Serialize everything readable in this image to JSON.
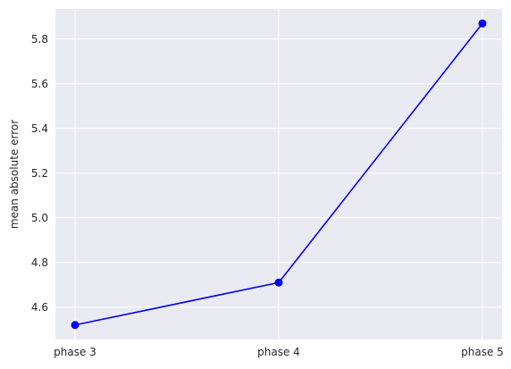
{
  "chart_data": {
    "type": "line",
    "title": "",
    "xlabel": "",
    "ylabel": "mean absolute error",
    "categories": [
      "phase 3",
      "phase 4",
      "phase 5"
    ],
    "series": [
      {
        "values": [
          4.52,
          4.71,
          5.87
        ],
        "color": "#0000ff",
        "marker": "circle"
      }
    ],
    "ylim": [
      4.455,
      5.935
    ],
    "yticks": [
      4.6,
      4.8,
      5.0,
      5.2,
      5.4,
      5.6,
      5.8
    ],
    "ytick_labels": [
      "4.6",
      "4.8",
      "5.0",
      "5.2",
      "5.4",
      "5.6",
      "5.8"
    ],
    "grid": true,
    "background_color": "#eaeaf2",
    "grid_color": "#ffffff"
  }
}
